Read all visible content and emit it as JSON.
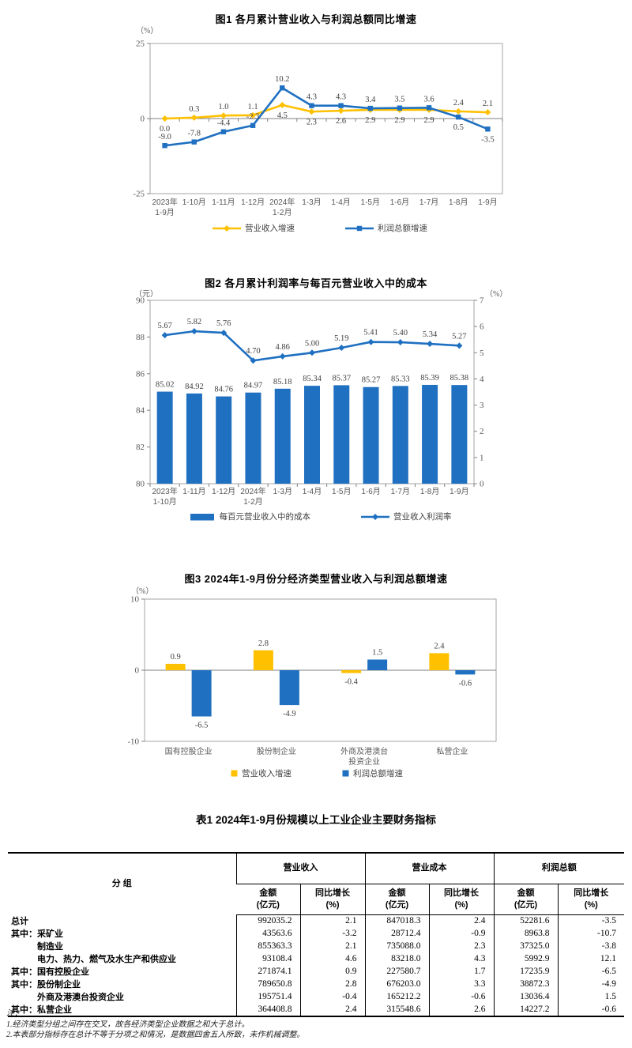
{
  "colors": {
    "yellow": "#FFC000",
    "blue": "#1F70C1",
    "axis_box": "#A6A6A6",
    "axis_line": "#808080",
    "tick_text": "#595959",
    "data_label": "#3F3F3F"
  },
  "chart_data": [
    {
      "id": "chart1",
      "type": "line",
      "title": "图1  各月累计营业收入与利润总额同比增速",
      "unit": "（%）",
      "ylim": [
        -25,
        25
      ],
      "yticks": [
        {
          "v": 25,
          "label": "25"
        },
        {
          "v": 0,
          "label": "0"
        },
        {
          "v": -25,
          "label": "-25"
        }
      ],
      "categories": [
        [
          "2023年",
          "1-9月"
        ],
        [
          "1-10月"
        ],
        [
          "1-11月"
        ],
        [
          "1-12月"
        ],
        [
          "2024年",
          "1-2月"
        ],
        [
          "1-3月"
        ],
        [
          "1-4月"
        ],
        [
          "1-5月"
        ],
        [
          "1-6月"
        ],
        [
          "1-7月"
        ],
        [
          "1-8月"
        ],
        [
          "1-9月"
        ]
      ],
      "legend_position": "bottom",
      "grid": false,
      "series": [
        {
          "key": "revenue-growth",
          "name": "营业收入增速",
          "color": "#FFC000",
          "marker": "diamond",
          "values": [
            0.0,
            0.3,
            1.0,
            1.1,
            4.5,
            2.3,
            2.6,
            2.9,
            2.9,
            2.9,
            2.4,
            2.1
          ],
          "labels": [
            "0.0",
            "0.3",
            "1.0",
            "1.1",
            "4.5",
            "2.3",
            "2.6",
            "2.9",
            "2.9",
            "2.9",
            "2.4",
            "2.1"
          ],
          "label_pos": [
            "b",
            "a",
            "a",
            "a",
            "b",
            "b",
            "b",
            "b",
            "b",
            "b",
            "a",
            "a"
          ]
        },
        {
          "key": "profit-growth",
          "name": "利润总额增速",
          "color": "#1F70C1",
          "marker": "square",
          "values": [
            -9.0,
            -7.8,
            -4.4,
            -2.3,
            10.2,
            4.3,
            4.3,
            3.4,
            3.5,
            3.6,
            0.5,
            -3.5
          ],
          "labels": [
            "-9.0",
            "-7.8",
            "-4.4",
            "-2.3",
            "10.2",
            "4.3",
            "4.3",
            "3.4",
            "3.5",
            "3.6",
            "0.5",
            "-3.5"
          ],
          "label_pos": [
            "a",
            "a",
            "a",
            "a",
            "a",
            "a",
            "a",
            "a",
            "a",
            "a",
            "b",
            "b"
          ]
        }
      ]
    },
    {
      "id": "chart2",
      "type": "bar-line",
      "title": "图2  各月累计利润率与每百元营业收入中的成本",
      "unit_left": "（元）",
      "unit_right": "（%）",
      "ylim_left": [
        80,
        90
      ],
      "ylim_right": [
        0,
        7
      ],
      "yticks_left": [
        "90",
        "88",
        "86",
        "84",
        "82",
        "80"
      ],
      "yticks_right": [
        "7",
        "6",
        "5",
        "4",
        "3",
        "2",
        "1",
        "0"
      ],
      "categories": [
        [
          "2023年",
          "1-10月"
        ],
        [
          "1-11月"
        ],
        [
          "1-12月"
        ],
        [
          "2024年",
          "1-2月"
        ],
        [
          "1-3月"
        ],
        [
          "1-4月"
        ],
        [
          "1-5月"
        ],
        [
          "1-6月"
        ],
        [
          "1-7月"
        ],
        [
          "1-8月"
        ],
        [
          "1-9月"
        ]
      ],
      "legend_position": "bottom",
      "grid": false,
      "series": [
        {
          "key": "cost-per-100",
          "name": "每百元营业收入中的成本",
          "color": "#1F70C1",
          "kind": "bar",
          "axis": "left",
          "values": [
            85.02,
            84.92,
            84.76,
            84.97,
            85.18,
            85.34,
            85.37,
            85.27,
            85.33,
            85.39,
            85.38
          ],
          "labels": [
            "85.02",
            "84.92",
            "84.76",
            "84.97",
            "85.18",
            "85.34",
            "85.37",
            "85.27",
            "85.33",
            "85.39",
            "85.38"
          ]
        },
        {
          "key": "profit-margin",
          "name": "营业收入利润率",
          "color": "#1F70C1",
          "kind": "line",
          "marker": "diamond",
          "axis": "right",
          "values": [
            5.67,
            5.82,
            5.76,
            4.7,
            4.86,
            5.0,
            5.19,
            5.41,
            5.4,
            5.34,
            5.27
          ],
          "labels": [
            "5.67",
            "5.82",
            "5.76",
            "4.70",
            "4.86",
            "5.00",
            "5.19",
            "5.41",
            "5.40",
            "5.34",
            "5.27"
          ]
        }
      ]
    },
    {
      "id": "chart3",
      "type": "bar",
      "title": "图3  2024年1-9月份分经济类型营业收入与利润总额增速",
      "unit": "（%）",
      "ylim": [
        -10,
        10
      ],
      "yticks": [
        {
          "v": 10,
          "label": "10"
        },
        {
          "v": 0,
          "label": "0"
        },
        {
          "v": -10,
          "label": "-10"
        }
      ],
      "categories": [
        [
          "国有控股企业"
        ],
        [
          "股份制企业"
        ],
        [
          "外商及港澳台",
          "投资企业"
        ],
        [
          "私营企业"
        ]
      ],
      "legend_position": "bottom",
      "grid": false,
      "series": [
        {
          "key": "revenue-growth",
          "name": "营业收入增速",
          "color": "#FFC000",
          "values": [
            0.9,
            2.8,
            -0.4,
            2.4
          ],
          "labels": [
            "0.9",
            "2.8",
            "-0.4",
            "2.4"
          ]
        },
        {
          "key": "profit-growth",
          "name": "利润总额增速",
          "color": "#1F70C1",
          "values": [
            -6.5,
            -4.9,
            1.5,
            -0.6
          ],
          "labels": [
            "-6.5",
            "-4.9",
            "1.5",
            "-0.6"
          ]
        }
      ]
    }
  ],
  "table": {
    "title": "表1  2024年1-9月份规模以上工业企业主要财务指标",
    "group_header": "分   组",
    "col_groups": [
      "营业收入",
      "营业成本",
      "利润总额"
    ],
    "sub_amount": [
      "金额",
      "(亿元)"
    ],
    "sub_growth": [
      "同比增长",
      "(%)"
    ],
    "rows": [
      {
        "label": "总计",
        "indent": 0,
        "values": [
          "992035.2",
          "2.1",
          "847018.3",
          "2.4",
          "52281.6",
          "-3.5"
        ]
      },
      {
        "label": "其中：采矿业",
        "indent": 0,
        "values": [
          "43563.6",
          "-3.2",
          "28712.4",
          "-0.9",
          "8963.8",
          "-10.7"
        ]
      },
      {
        "label": "制造业",
        "indent": 1,
        "values": [
          "855363.3",
          "2.1",
          "735088.0",
          "2.3",
          "37325.0",
          "-3.8"
        ]
      },
      {
        "label": "电力、热力、燃气及水生产和供应业",
        "indent": 1,
        "values": [
          "93108.4",
          "4.6",
          "83218.0",
          "4.3",
          "5992.9",
          "12.1"
        ]
      },
      {
        "label": "其中：国有控股企业",
        "indent": 0,
        "values": [
          "271874.1",
          "0.9",
          "227580.7",
          "1.7",
          "17235.9",
          "-6.5"
        ]
      },
      {
        "label": "其中：股份制企业",
        "indent": 0,
        "values": [
          "789650.8",
          "2.8",
          "676203.0",
          "3.3",
          "38872.3",
          "-4.9"
        ]
      },
      {
        "label": "外商及港澳台投资企业",
        "indent": 1,
        "values": [
          "195751.4",
          "-0.4",
          "165212.2",
          "-0.6",
          "13036.4",
          "1.5"
        ]
      },
      {
        "label": "其中：私营企业",
        "indent": 0,
        "values": [
          "364408.8",
          "2.4",
          "315548.6",
          "2.6",
          "14227.2",
          "-0.6"
        ]
      }
    ]
  },
  "notes": {
    "label": "注：",
    "items": [
      "1.经济类型分组之间存在交叉，故各经济类型企业数据之和大于总计。",
      "2.本表部分指标存在总计不等于分项之和情况，是数据四舍五入所致，未作机械调整。"
    ]
  }
}
